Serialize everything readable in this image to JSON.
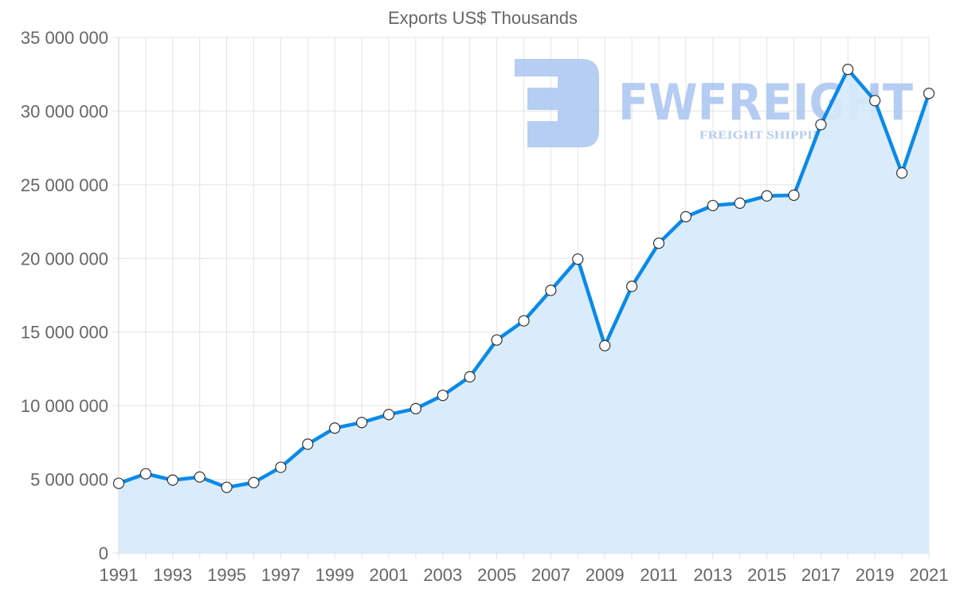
{
  "chart_data": {
    "type": "area",
    "title": "Exports US$ Thousands",
    "xlabel": "",
    "ylabel": "",
    "ylim": [
      0,
      35000000
    ],
    "grid": true,
    "legend": null,
    "x": [
      1991,
      1992,
      1993,
      1994,
      1995,
      1996,
      1997,
      1998,
      1999,
      2000,
      2001,
      2002,
      2003,
      2004,
      2005,
      2006,
      2007,
      2008,
      2009,
      2010,
      2011,
      2012,
      2013,
      2014,
      2015,
      2016,
      2017,
      2018,
      2019,
      2020,
      2021
    ],
    "series": [
      {
        "name": "Exports US$ Thousands",
        "values": [
          4730000,
          5380000,
          4950000,
          5160000,
          4460000,
          4780000,
          5820000,
          7390000,
          8480000,
          8860000,
          9400000,
          9800000,
          10700000,
          11960000,
          14460000,
          15760000,
          17830000,
          19950000,
          14080000,
          18100000,
          21030000,
          22830000,
          23590000,
          23750000,
          24240000,
          24290000,
          29080000,
          32830000,
          30710000,
          25800000,
          31200000
        ]
      }
    ],
    "y_ticks": [
      "0",
      "5 000 000",
      "10 000 000",
      "15 000 000",
      "20 000 000",
      "25 000 000",
      "30 000 000",
      "35 000 000"
    ],
    "y_tick_values": [
      0,
      5000000,
      10000000,
      15000000,
      20000000,
      25000000,
      30000000,
      35000000
    ],
    "x_tick_labels": [
      "1991",
      "1993",
      "1995",
      "1997",
      "1999",
      "2001",
      "2003",
      "2005",
      "2007",
      "2009",
      "2011",
      "2013",
      "2015",
      "2017",
      "2019",
      "2021"
    ],
    "colors": {
      "line": "#0a8ae8",
      "fill": "#d6eafc",
      "point_fill": "#ffffff",
      "point_stroke": "#333333"
    }
  },
  "watermark": {
    "brand": "FWFREIGHT",
    "tagline": "FREIGHT SHIPPING",
    "color": "#a9c5f0"
  }
}
